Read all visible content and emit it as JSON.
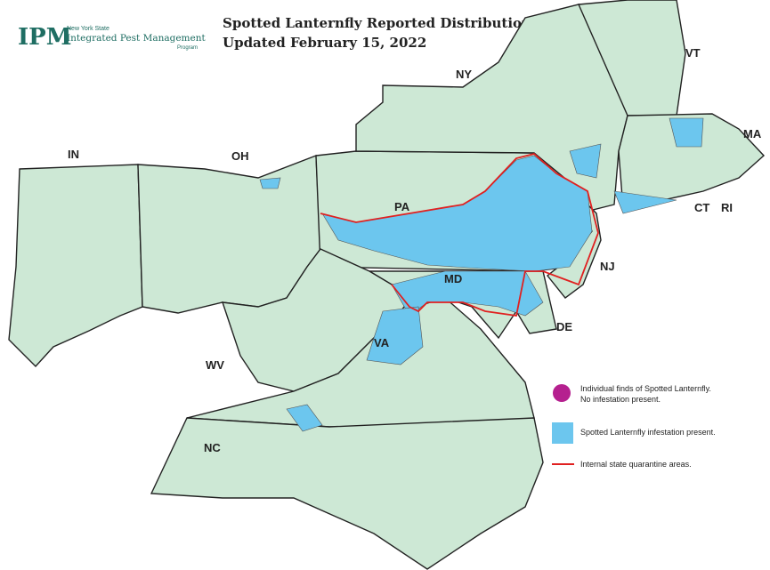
{
  "logo": {
    "mark": "IPM",
    "line1": "New York State",
    "line2": "Integrated Pest Management",
    "line3": "Program"
  },
  "title": [
    "Spotted Lanternfly Reported Distribution",
    "Updated February 15, 2022"
  ],
  "states": [
    "NY",
    "VT",
    "MA",
    "CT",
    "RI",
    "IN",
    "OH",
    "PA",
    "NJ",
    "MD",
    "DE",
    "VA",
    "WV",
    "NC"
  ],
  "legend": [
    {
      "lines": [
        "Individual finds of Spotted Lanternfly.",
        "No infestation present."
      ]
    },
    {
      "lines": [
        "Spotted Lanternfly infestation present."
      ]
    },
    {
      "lines": [
        "Internal state quarantine areas."
      ]
    }
  ]
}
